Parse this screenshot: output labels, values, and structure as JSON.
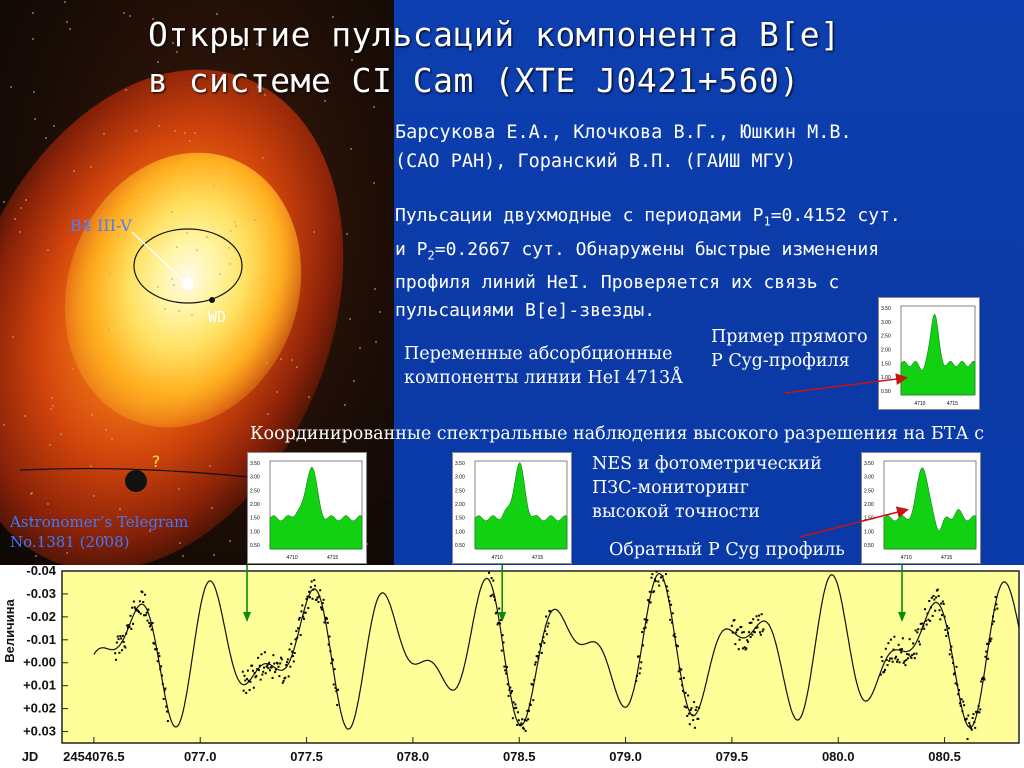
{
  "title": {
    "line1": "Открытие пульсаций компонента B[e]",
    "line2": "в системе CI Cam (XTE J0421+560)"
  },
  "authors": {
    "line1": "Барсукова Е.А., Клочкова В.Г., Юшкин М.В.",
    "line2": "(САО РАН), Горанский В.П. (ГАИШ МГУ)"
  },
  "abstract": {
    "line1_a": "Пульсации двухмодные с периодами P",
    "line1_sub": "1",
    "line1_b": "=0.4152 сут.",
    "line2_a": "и P",
    "line2_sub": "2",
    "line2_b": "=0.2667 сут. Обнаружены быстрые изменения",
    "line3": "профиля линий HeI. Проверяется их связь с",
    "line4": "пульсациями B[e]-звезды."
  },
  "image_labels": {
    "b4": "B4 III-V",
    "wd": "WD",
    "question": "?",
    "atel_line1": "Astronomer’s Telegram",
    "atel_line2": "No.1381 (2008)"
  },
  "notes": {
    "var_absorb_line1": "Переменные абсорбционные",
    "var_absorb_line2": "компоненты линии HeI 4713Å",
    "pcyg_direct_line1": "Пример прямого",
    "pcyg_direct_line2": "P Cyg-профиля",
    "coord_obs": "Координированные спектральные наблюдения высокого разрешения на БТА с",
    "nes_line1": "NES и фотометрический",
    "nes_line2": "ПЗС-мониторинг",
    "nes_line3": "высокой точности",
    "inverse_pcyg": "Обратный P Cyg профиль"
  },
  "spectra": {
    "y_ticks": [
      "3.50",
      "3.00",
      "2.50",
      "2.00",
      "1.50",
      "1.00",
      "0.50"
    ],
    "x_ticks": [
      "4710",
      "4715"
    ],
    "fill_color": "#12d012"
  },
  "chart_data": {
    "type": "scatter",
    "ylabel": "Величина",
    "xlabel": "JD",
    "x_tick_labels": [
      "2454076.5",
      "077.0",
      "077.5",
      "078.0",
      "078.5",
      "079.0",
      "079.5",
      "080.0",
      "080.5"
    ],
    "x_ticks": [
      2454076.5,
      2454077.0,
      2454077.5,
      2454078.0,
      2454078.5,
      2454079.0,
      2454079.5,
      2454080.0,
      2454080.5
    ],
    "y_tick_labels": [
      "-0.04",
      "-0.03",
      "-0.02",
      "-0.01",
      "+0.00",
      "+0.01",
      "+0.02",
      "+0.03"
    ],
    "y_ticks": [
      -0.04,
      -0.03,
      -0.02,
      -0.01,
      0.0,
      0.01,
      0.02,
      0.03
    ],
    "xlim": [
      2454076.35,
      2454080.85
    ],
    "ylim": [
      -0.04,
      0.035
    ],
    "y_inverted": true,
    "background": "#ffff99",
    "model": {
      "periods": [
        0.4152,
        0.2667
      ],
      "amplitudes": [
        0.02,
        0.014
      ]
    },
    "observation_windows": [
      [
        2454076.6,
        2454076.85
      ],
      [
        2454077.2,
        2454077.65
      ],
      [
        2454078.35,
        2454078.65
      ],
      [
        2454079.05,
        2454079.35
      ],
      [
        2454079.5,
        2454079.65
      ],
      [
        2454080.2,
        2454080.75
      ]
    ],
    "arrows_at": [
      2454077.22,
      2454078.42,
      2454080.3
    ],
    "arrow_color": "#0b8a0b"
  }
}
